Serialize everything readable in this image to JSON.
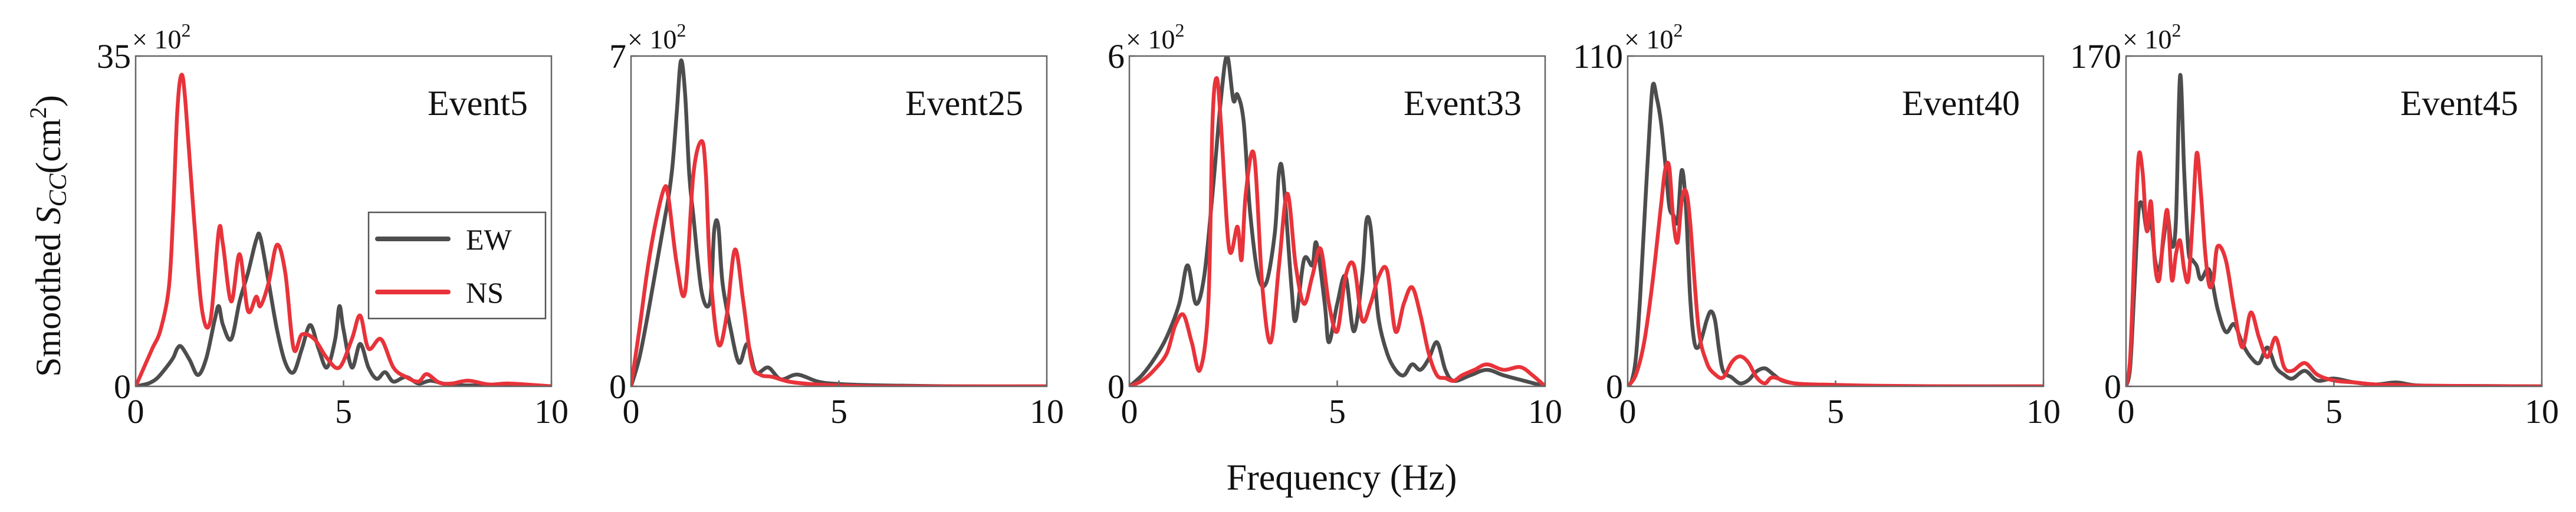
{
  "figure": {
    "ylabel_prefix": "Smoothed ",
    "ylabel_sym": "S",
    "ylabel_sub": "CC",
    "ylabel_unit_open": "(cm",
    "ylabel_unit_exp": "2",
    "ylabel_unit_close": ")",
    "xlabel": "Frequency (Hz)",
    "multiplier_base": "× 10",
    "multiplier_exp": "2"
  },
  "legend": {
    "items": [
      {
        "label": "EW",
        "color": "#4d4d4d"
      },
      {
        "label": "NS",
        "color": "#e8333a"
      }
    ]
  },
  "chart_data": [
    {
      "type": "line",
      "title": "Event5",
      "xlim": [
        0,
        10
      ],
      "ylim": [
        0,
        35
      ],
      "xticks": [
        "0",
        "5",
        "10"
      ],
      "yticks": [
        "0",
        "35"
      ],
      "series": [
        {
          "name": "EW",
          "color": "#4d4d4d",
          "x": [
            0,
            0.3,
            0.5,
            0.7,
            0.9,
            1.0,
            1.1,
            1.3,
            1.5,
            1.7,
            1.9,
            2.0,
            2.1,
            2.3,
            2.5,
            2.7,
            2.9,
            3.0,
            3.2,
            3.4,
            3.6,
            3.8,
            4.0,
            4.2,
            4.4,
            4.6,
            4.8,
            4.9,
            5.0,
            5.2,
            5.4,
            5.6,
            5.8,
            6.0,
            6.2,
            6.5,
            6.8,
            7.1,
            7.5,
            8.0,
            9.0,
            10.0
          ],
          "y": [
            0,
            0.3,
            0.8,
            1.8,
            3.0,
            4.0,
            4.2,
            2.8,
            1.2,
            3.0,
            7.0,
            8.5,
            6.5,
            5.0,
            9.0,
            12.0,
            15.5,
            15.8,
            11.0,
            6.0,
            2.5,
            1.5,
            4.0,
            6.5,
            4.0,
            2.0,
            5.0,
            8.5,
            6.0,
            2.0,
            4.5,
            2.0,
            0.8,
            1.5,
            0.5,
            1.0,
            0.3,
            0.6,
            0.2,
            0.1,
            0.05,
            0
          ]
        },
        {
          "name": "NS",
          "color": "#e8333a",
          "x": [
            0,
            0.2,
            0.4,
            0.6,
            0.8,
            0.9,
            1.0,
            1.1,
            1.2,
            1.4,
            1.6,
            1.8,
            2.0,
            2.1,
            2.3,
            2.5,
            2.7,
            2.9,
            3.0,
            3.2,
            3.4,
            3.6,
            3.8,
            4.0,
            4.3,
            4.6,
            4.9,
            5.2,
            5.4,
            5.6,
            5.9,
            6.2,
            6.5,
            6.8,
            7.0,
            7.3,
            7.6,
            8.0,
            8.5,
            9.0,
            10.0
          ],
          "y": [
            0,
            2.0,
            4.0,
            6.0,
            10.5,
            18.0,
            29.0,
            33.0,
            30.0,
            18.0,
            8.0,
            7.0,
            16.5,
            15.0,
            9.0,
            14.0,
            8.0,
            9.5,
            8.5,
            11.0,
            15.0,
            12.0,
            4.0,
            5.5,
            5.0,
            3.0,
            2.0,
            5.0,
            7.5,
            4.0,
            5.0,
            2.0,
            1.0,
            0.5,
            1.3,
            0.4,
            0.3,
            0.6,
            0.2,
            0.3,
            0
          ]
        }
      ]
    },
    {
      "type": "line",
      "title": "Event25",
      "xlim": [
        0,
        10
      ],
      "ylim": [
        0,
        7
      ],
      "xticks": [
        "0",
        "5",
        "10"
      ],
      "yticks": [
        "0",
        "7"
      ],
      "series": [
        {
          "name": "EW",
          "color": "#4d4d4d",
          "x": [
            0,
            0.2,
            0.4,
            0.6,
            0.8,
            0.9,
            1.0,
            1.1,
            1.2,
            1.3,
            1.4,
            1.5,
            1.7,
            1.9,
            2.0,
            2.1,
            2.2,
            2.4,
            2.6,
            2.8,
            3.0,
            3.3,
            3.6,
            4.0,
            4.5,
            5.0,
            6.0,
            8.0,
            10.0
          ],
          "y": [
            0,
            0.6,
            1.5,
            2.5,
            3.5,
            4.0,
            4.7,
            5.8,
            6.9,
            6.2,
            4.5,
            3.6,
            2.0,
            1.8,
            3.3,
            3.4,
            2.2,
            1.2,
            0.5,
            0.9,
            0.3,
            0.4,
            0.15,
            0.25,
            0.1,
            0.05,
            0.02,
            0,
            0
          ]
        },
        {
          "name": "NS",
          "color": "#e8333a",
          "x": [
            0,
            0.2,
            0.4,
            0.6,
            0.8,
            0.9,
            1.1,
            1.3,
            1.5,
            1.7,
            1.8,
            1.9,
            2.1,
            2.3,
            2.5,
            2.7,
            2.9,
            3.1,
            3.4,
            3.8,
            4.3,
            5.0,
            6.0,
            8.0,
            10.0
          ],
          "y": [
            0,
            1.2,
            2.5,
            3.5,
            4.2,
            4.0,
            2.6,
            2.0,
            4.5,
            5.2,
            4.5,
            2.5,
            0.9,
            1.5,
            2.9,
            1.8,
            0.5,
            0.25,
            0.2,
            0.1,
            0.05,
            0.02,
            0,
            0,
            0
          ]
        }
      ]
    },
    {
      "type": "line",
      "title": "Event33",
      "xlim": [
        0,
        10
      ],
      "ylim": [
        0,
        6
      ],
      "xticks": [
        "0",
        "5",
        "10"
      ],
      "yticks": [
        "0",
        "6"
      ],
      "series": [
        {
          "name": "EW",
          "color": "#4d4d4d",
          "x": [
            0,
            0.3,
            0.6,
            0.9,
            1.2,
            1.4,
            1.6,
            1.8,
            2.0,
            2.2,
            2.35,
            2.5,
            2.6,
            2.75,
            2.9,
            3.1,
            3.3,
            3.5,
            3.6,
            3.7,
            3.9,
            4.0,
            4.2,
            4.4,
            4.5,
            4.7,
            4.8,
            5.0,
            5.2,
            5.4,
            5.6,
            5.7,
            5.8,
            5.9,
            6.0,
            6.2,
            6.4,
            6.6,
            6.8,
            7.0,
            7.2,
            7.4,
            7.6,
            7.8,
            8.2,
            8.6,
            9.0,
            9.5,
            10.0
          ],
          "y": [
            0,
            0.2,
            0.5,
            0.9,
            1.5,
            2.2,
            1.5,
            2.0,
            3.5,
            5.2,
            6.0,
            5.2,
            5.3,
            4.8,
            3.2,
            2.0,
            1.9,
            2.8,
            3.9,
            3.8,
            1.8,
            1.2,
            2.3,
            2.2,
            2.6,
            1.5,
            0.8,
            1.5,
            2.0,
            1.0,
            2.0,
            3.0,
            2.9,
            2.0,
            1.2,
            0.6,
            0.3,
            0.2,
            0.4,
            0.3,
            0.5,
            0.8,
            0.3,
            0.1,
            0.2,
            0.3,
            0.2,
            0.1,
            0
          ]
        },
        {
          "name": "NS",
          "color": "#e8333a",
          "x": [
            0,
            0.3,
            0.6,
            0.9,
            1.1,
            1.3,
            1.5,
            1.7,
            1.9,
            2.0,
            2.1,
            2.2,
            2.4,
            2.6,
            2.7,
            2.8,
            3.0,
            3.2,
            3.4,
            3.6,
            3.8,
            4.0,
            4.2,
            4.4,
            4.6,
            4.8,
            5.0,
            5.2,
            5.4,
            5.6,
            5.8,
            6.0,
            6.2,
            6.4,
            6.6,
            6.8,
            7.0,
            7.2,
            7.4,
            7.6,
            7.8,
            8.0,
            8.3,
            8.6,
            9.0,
            9.4,
            9.7,
            10.0
          ],
          "y": [
            0,
            0.1,
            0.3,
            0.6,
            1.1,
            1.3,
            0.8,
            0.3,
            1.5,
            4.8,
            5.6,
            4.8,
            2.5,
            2.9,
            2.3,
            3.5,
            4.2,
            1.8,
            0.8,
            2.2,
            3.5,
            2.2,
            1.5,
            2.0,
            2.5,
            1.5,
            1.0,
            2.0,
            2.2,
            1.2,
            1.5,
            2.0,
            2.1,
            1.0,
            1.5,
            1.8,
            1.3,
            0.6,
            0.2,
            0.15,
            0.1,
            0.2,
            0.3,
            0.4,
            0.3,
            0.35,
            0.2,
            0
          ]
        }
      ]
    },
    {
      "type": "line",
      "title": "Event40",
      "xlim": [
        0,
        10
      ],
      "ylim": [
        0,
        110
      ],
      "xticks": [
        "0",
        "5",
        "10"
      ],
      "yticks": [
        "0",
        "110"
      ],
      "series": [
        {
          "name": "EW",
          "color": "#4d4d4d",
          "x": [
            0,
            0.1,
            0.2,
            0.3,
            0.4,
            0.5,
            0.6,
            0.7,
            0.8,
            0.9,
            1.0,
            1.1,
            1.2,
            1.3,
            1.4,
            1.5,
            1.6,
            1.7,
            1.8,
            1.9,
            2.0,
            2.1,
            2.2,
            2.3,
            2.5,
            2.7,
            2.9,
            3.1,
            3.3,
            3.5,
            3.7,
            4.0,
            4.5,
            5.0,
            6.0,
            8.0,
            10.0
          ],
          "y": [
            0,
            2,
            10,
            30,
            55,
            80,
            100,
            96,
            88,
            75,
            60,
            57,
            55,
            72,
            60,
            30,
            15,
            13,
            17,
            22,
            25,
            22,
            12,
            5,
            3,
            1,
            2,
            5,
            6,
            4,
            2,
            1,
            0.5,
            0.2,
            0.1,
            0,
            0
          ]
        },
        {
          "name": "NS",
          "color": "#e8333a",
          "x": [
            0,
            0.2,
            0.4,
            0.6,
            0.8,
            0.9,
            1.0,
            1.1,
            1.2,
            1.3,
            1.4,
            1.5,
            1.7,
            1.9,
            2.1,
            2.3,
            2.5,
            2.7,
            2.9,
            3.1,
            3.3,
            3.5,
            4.0,
            5.0,
            6.0,
            8.0,
            10.0
          ],
          "y": [
            0,
            4,
            15,
            35,
            60,
            72,
            73,
            55,
            48,
            62,
            65,
            55,
            20,
            8,
            4,
            3,
            8,
            10,
            8,
            3,
            1,
            3,
            1,
            0.5,
            0.2,
            0,
            0
          ]
        }
      ]
    },
    {
      "type": "line",
      "title": "Event45",
      "xlim": [
        0,
        10
      ],
      "ylim": [
        0,
        170
      ],
      "xticks": [
        "0",
        "5",
        "10"
      ],
      "yticks": [
        "0",
        "170"
      ],
      "series": [
        {
          "name": "EW",
          "color": "#4d4d4d",
          "x": [
            0,
            0.1,
            0.2,
            0.3,
            0.4,
            0.5,
            0.6,
            0.7,
            0.8,
            0.9,
            1.0,
            1.1,
            1.2,
            1.3,
            1.4,
            1.5,
            1.6,
            1.7,
            1.8,
            2.0,
            2.2,
            2.4,
            2.6,
            2.8,
            3.0,
            3.2,
            3.4,
            3.6,
            3.8,
            4.0,
            4.3,
            4.6,
            5.0,
            5.5,
            6.0,
            6.5,
            7.0,
            8.0,
            10.0
          ],
          "y": [
            0,
            10,
            50,
            90,
            93,
            80,
            85,
            65,
            60,
            75,
            88,
            72,
            85,
            160,
            110,
            70,
            65,
            62,
            55,
            60,
            40,
            28,
            32,
            22,
            15,
            12,
            20,
            10,
            6,
            4,
            8,
            3,
            4,
            2,
            1,
            2,
            0.5,
            0.2,
            0
          ]
        },
        {
          "name": "NS",
          "color": "#e8333a",
          "x": [
            0,
            0.1,
            0.2,
            0.3,
            0.4,
            0.5,
            0.6,
            0.7,
            0.8,
            0.9,
            1.0,
            1.1,
            1.2,
            1.3,
            1.4,
            1.5,
            1.6,
            1.7,
            1.8,
            1.9,
            2.0,
            2.1,
            2.2,
            2.4,
            2.6,
            2.8,
            3.0,
            3.2,
            3.4,
            3.6,
            3.8,
            4.0,
            4.3,
            4.6,
            5.0,
            5.5,
            6.0,
            6.5,
            7.0,
            8.0,
            10.0
          ],
          "y": [
            0,
            15,
            70,
            118,
            110,
            80,
            95,
            62,
            55,
            78,
            90,
            55,
            68,
            75,
            60,
            55,
            85,
            120,
            100,
            70,
            52,
            55,
            72,
            65,
            40,
            20,
            38,
            25,
            15,
            25,
            10,
            8,
            12,
            6,
            3,
            2,
            1,
            0.8,
            0.4,
            0.2,
            0
          ]
        }
      ]
    }
  ]
}
